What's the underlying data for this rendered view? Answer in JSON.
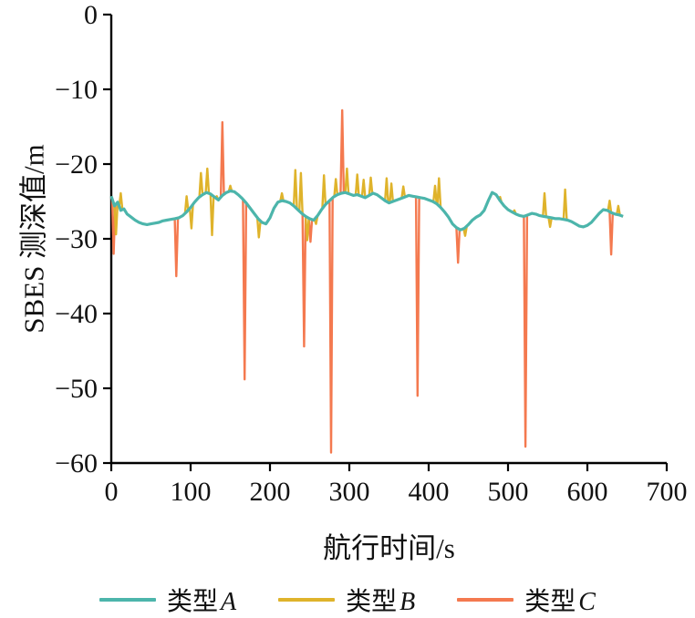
{
  "chart_data": {
    "type": "line",
    "title": "",
    "xlabel": "航行时间/s",
    "ylabel": "SBES 测深值/m",
    "xlim": [
      0,
      700
    ],
    "ylim": [
      -60,
      0
    ],
    "x_ticks": [
      0,
      100,
      200,
      300,
      400,
      500,
      600,
      700
    ],
    "y_ticks": [
      0,
      -10,
      -20,
      -30,
      -40,
      -50,
      -60
    ],
    "grid": false,
    "legend_position": "bottom",
    "axis_color": "#000000",
    "baseline": [
      [
        0,
        -24.3
      ],
      [
        4,
        -25.6
      ],
      [
        8,
        -25.1
      ],
      [
        12,
        -26.2
      ],
      [
        16,
        -26.0
      ],
      [
        20,
        -26.7
      ],
      [
        25,
        -27.1
      ],
      [
        30,
        -27.5
      ],
      [
        35,
        -27.8
      ],
      [
        40,
        -28.0
      ],
      [
        45,
        -28.1
      ],
      [
        50,
        -28.0
      ],
      [
        55,
        -27.9
      ],
      [
        60,
        -27.8
      ],
      [
        65,
        -27.6
      ],
      [
        70,
        -27.5
      ],
      [
        75,
        -27.4
      ],
      [
        80,
        -27.3
      ],
      [
        85,
        -27.2
      ],
      [
        90,
        -26.9
      ],
      [
        95,
        -26.4
      ],
      [
        100,
        -25.8
      ],
      [
        105,
        -25.1
      ],
      [
        110,
        -24.5
      ],
      [
        115,
        -24.1
      ],
      [
        120,
        -23.8
      ],
      [
        125,
        -24.0
      ],
      [
        130,
        -24.4
      ],
      [
        135,
        -24.8
      ],
      [
        140,
        -24.2
      ],
      [
        145,
        -23.8
      ],
      [
        150,
        -23.6
      ],
      [
        155,
        -23.7
      ],
      [
        160,
        -24.1
      ],
      [
        165,
        -24.6
      ],
      [
        170,
        -25.2
      ],
      [
        175,
        -25.9
      ],
      [
        180,
        -26.6
      ],
      [
        185,
        -27.3
      ],
      [
        190,
        -27.8
      ],
      [
        195,
        -28.0
      ],
      [
        200,
        -27.2
      ],
      [
        205,
        -25.9
      ],
      [
        210,
        -25.1
      ],
      [
        215,
        -24.9
      ],
      [
        220,
        -25.0
      ],
      [
        225,
        -25.2
      ],
      [
        230,
        -25.6
      ],
      [
        235,
        -26.1
      ],
      [
        240,
        -26.6
      ],
      [
        245,
        -27.0
      ],
      [
        250,
        -27.3
      ],
      [
        255,
        -27.5
      ],
      [
        260,
        -26.9
      ],
      [
        265,
        -26.1
      ],
      [
        270,
        -25.4
      ],
      [
        275,
        -24.9
      ],
      [
        280,
        -24.4
      ],
      [
        285,
        -24.1
      ],
      [
        290,
        -23.9
      ],
      [
        295,
        -23.8
      ],
      [
        300,
        -24.0
      ],
      [
        305,
        -24.2
      ],
      [
        310,
        -24.1
      ],
      [
        315,
        -24.3
      ],
      [
        320,
        -24.5
      ],
      [
        325,
        -24.2
      ],
      [
        330,
        -23.9
      ],
      [
        335,
        -24.1
      ],
      [
        340,
        -24.5
      ],
      [
        345,
        -24.9
      ],
      [
        350,
        -25.2
      ],
      [
        355,
        -25.0
      ],
      [
        360,
        -24.8
      ],
      [
        365,
        -24.6
      ],
      [
        370,
        -24.4
      ],
      [
        375,
        -24.2
      ],
      [
        380,
        -24.3
      ],
      [
        385,
        -24.4
      ],
      [
        390,
        -24.5
      ],
      [
        395,
        -24.6
      ],
      [
        400,
        -24.8
      ],
      [
        405,
        -25.0
      ],
      [
        410,
        -25.3
      ],
      [
        415,
        -25.8
      ],
      [
        420,
        -26.4
      ],
      [
        425,
        -27.1
      ],
      [
        430,
        -28.0
      ],
      [
        435,
        -28.5
      ],
      [
        440,
        -28.8
      ],
      [
        445,
        -28.6
      ],
      [
        450,
        -28.1
      ],
      [
        455,
        -27.5
      ],
      [
        460,
        -27.1
      ],
      [
        465,
        -26.8
      ],
      [
        470,
        -26.2
      ],
      [
        475,
        -24.9
      ],
      [
        480,
        -23.8
      ],
      [
        485,
        -24.1
      ],
      [
        490,
        -24.9
      ],
      [
        495,
        -25.6
      ],
      [
        500,
        -26.1
      ],
      [
        505,
        -26.4
      ],
      [
        510,
        -26.7
      ],
      [
        515,
        -26.9
      ],
      [
        520,
        -27.0
      ],
      [
        525,
        -26.8
      ],
      [
        530,
        -26.6
      ],
      [
        535,
        -26.7
      ],
      [
        540,
        -26.9
      ],
      [
        545,
        -27.0
      ],
      [
        550,
        -27.1
      ],
      [
        555,
        -27.2
      ],
      [
        560,
        -27.3
      ],
      [
        565,
        -27.3
      ],
      [
        570,
        -27.4
      ],
      [
        575,
        -27.5
      ],
      [
        580,
        -27.7
      ],
      [
        585,
        -28.0
      ],
      [
        590,
        -28.3
      ],
      [
        595,
        -28.4
      ],
      [
        600,
        -28.2
      ],
      [
        605,
        -27.8
      ],
      [
        610,
        -27.2
      ],
      [
        615,
        -26.6
      ],
      [
        620,
        -26.1
      ],
      [
        625,
        -26.2
      ],
      [
        630,
        -26.5
      ],
      [
        635,
        -26.7
      ],
      [
        640,
        -26.8
      ],
      [
        645,
        -27.0
      ]
    ],
    "series": [
      {
        "name": "类型A",
        "label_prefix": "类型",
        "label_letter": "A",
        "color": "#4cb5ab",
        "role": "baseline"
      },
      {
        "name": "类型B",
        "label_prefix": "类型",
        "label_letter": "B",
        "color": "#dfb32b",
        "role": "baseline-with-spikes",
        "spikes": [
          [
            6,
            -29.4
          ],
          [
            12,
            -23.9
          ],
          [
            95,
            -24.3
          ],
          [
            101,
            -28.6
          ],
          [
            113,
            -21.2
          ],
          [
            121,
            -20.6
          ],
          [
            127,
            -29.5
          ],
          [
            133,
            -24.3
          ],
          [
            150,
            -22.9
          ],
          [
            186,
            -29.8
          ],
          [
            215,
            -23.9
          ],
          [
            232,
            -20.8
          ],
          [
            239,
            -21.2
          ],
          [
            247,
            -30.2
          ],
          [
            258,
            -28.0
          ],
          [
            268,
            -21.5
          ],
          [
            283,
            -22.0
          ],
          [
            297,
            -20.6
          ],
          [
            310,
            -21.4
          ],
          [
            318,
            -22.1
          ],
          [
            327,
            -21.8
          ],
          [
            347,
            -21.9
          ],
          [
            353,
            -22.6
          ],
          [
            368,
            -23.0
          ],
          [
            408,
            -22.9
          ],
          [
            413,
            -21.9
          ],
          [
            446,
            -29.6
          ],
          [
            490,
            -24.4
          ],
          [
            508,
            -26.2
          ],
          [
            546,
            -23.9
          ],
          [
            553,
            -28.4
          ],
          [
            572,
            -23.4
          ],
          [
            628,
            -24.9
          ],
          [
            639,
            -25.6
          ]
        ]
      },
      {
        "name": "类型C",
        "label_prefix": "类型",
        "label_letter": "C",
        "color": "#f4794f",
        "role": "baseline-with-spikes",
        "spikes": [
          [
            3,
            -32.0
          ],
          [
            82,
            -35.0
          ],
          [
            140,
            -14.4
          ],
          [
            168,
            -48.8
          ],
          [
            243,
            -44.4
          ],
          [
            251,
            -30.4
          ],
          [
            277,
            -58.6
          ],
          [
            291,
            -12.8
          ],
          [
            386,
            -51.0
          ],
          [
            437,
            -33.2
          ],
          [
            522,
            -57.8
          ],
          [
            630,
            -32.1
          ]
        ]
      }
    ]
  }
}
